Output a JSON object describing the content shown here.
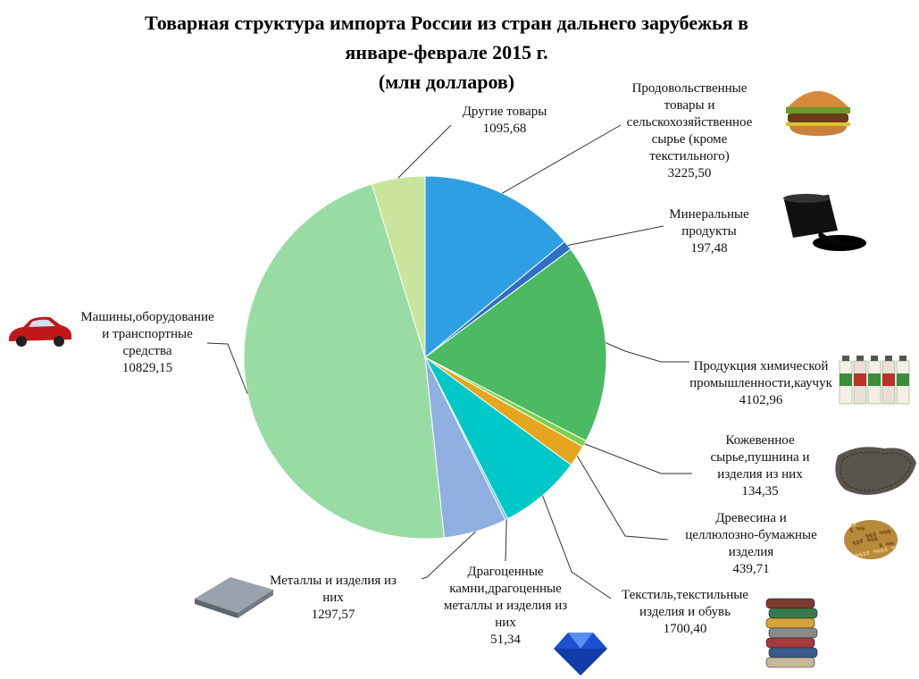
{
  "chart_data": {
    "type": "pie",
    "title_lines": [
      "Товарная структура импорта России из стран дальнего зарубежья  в",
      "январе-феврале 2015 г.",
      "(млн долларов)"
    ],
    "slices": [
      {
        "label_lines": [
          "Продовольственные",
          "товары и",
          "сельскохозяйственное",
          "сырье (кроме",
          "текстильного)"
        ],
        "value_text": "3225,50",
        "value": 3225.5,
        "color": "#2e9fe3",
        "icon": "burger-icon"
      },
      {
        "label_lines": [
          "Минеральные",
          "продукты"
        ],
        "value_text": "197,48",
        "value": 197.48,
        "color": "#2f6fc4",
        "icon": "oil-barrel-icon"
      },
      {
        "label_lines": [
          "Продукция химической",
          "промышленности,каучук"
        ],
        "value_text": "4102,96",
        "value": 4102.96,
        "color": "#4cba63",
        "icon": "chemical-bottles-icon"
      },
      {
        "label_lines": [
          "Кожевенное",
          "сырье,пушнина и",
          "изделия из них"
        ],
        "value_text": "134,35",
        "value": 134.35,
        "color": "#7fd04a",
        "icon": "leather-icon"
      },
      {
        "label_lines": [
          "Древесина и",
          "целлюлозно-бумажные",
          "изделия"
        ],
        "value_text": "439,71",
        "value": 439.71,
        "color": "#e6a51f",
        "icon": "wood-chips-icon"
      },
      {
        "label_lines": [
          "Текстиль,текстильные",
          "изделия и обувь"
        ],
        "value_text": "1700,40",
        "value": 1700.4,
        "color": "#00c8c8",
        "icon": "fabric-stack-icon"
      },
      {
        "label_lines": [
          "Драгоценные",
          "камни,драгоценные",
          "металлы и изделия из",
          "них"
        ],
        "value_text": "51,34",
        "value": 51.34,
        "color": "#6ab8ff",
        "icon": "gem-icon"
      },
      {
        "label_lines": [
          "Металлы и изделия из",
          "них"
        ],
        "value_text": "1297,57",
        "value": 1297.57,
        "color": "#8fb0e0",
        "icon": "metal-sheet-icon"
      },
      {
        "label_lines": [
          "Машины,оборудование",
          "и транспортные",
          "средства"
        ],
        "value_text": "10829,15",
        "value": 10829.15,
        "color": "#98dca4",
        "icon": "car-icon"
      },
      {
        "label_lines": [
          "Другие товары"
        ],
        "value_text": "1095,68",
        "value": 1095.68,
        "color": "#c9e59b",
        "icon": null
      }
    ]
  }
}
